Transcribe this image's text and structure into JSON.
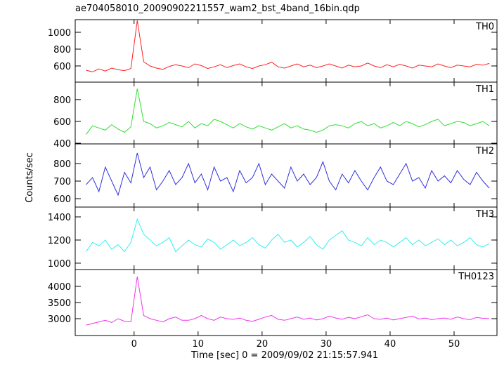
{
  "title": "ae704058010_20090902211557_wam2_bst_4band_16bin.qdp",
  "xlabel": "Time [sec] 0 = 2009/09/02 21:15:57.941",
  "ylabel": "Counts/sec",
  "xlim": [
    -9.2,
    56.7
  ],
  "xticks": [
    0,
    10,
    20,
    30,
    40,
    50
  ],
  "chart_data": [
    {
      "type": "line",
      "label": "TH0",
      "color": "#ff2020",
      "ylim": [
        408,
        1150
      ],
      "yticks": [
        600,
        800,
        1000
      ],
      "x": [
        -7.5,
        -6.5,
        -5.5,
        -4.5,
        -3.5,
        -2.5,
        -1.5,
        -0.5,
        0.5,
        1.5,
        2.5,
        3.5,
        4.5,
        5.5,
        6.5,
        7.5,
        8.5,
        9.5,
        10.5,
        11.5,
        12.5,
        13.5,
        14.5,
        15.5,
        16.5,
        17.5,
        18.5,
        19.5,
        20.5,
        21.5,
        22.5,
        23.5,
        24.5,
        25.5,
        26.5,
        27.5,
        28.5,
        29.5,
        30.5,
        31.5,
        32.5,
        33.5,
        34.5,
        35.5,
        36.5,
        37.5,
        38.5,
        39.5,
        40.5,
        41.5,
        42.5,
        43.5,
        44.5,
        45.5,
        46.5,
        47.5,
        48.5,
        49.5,
        50.5,
        51.5,
        52.5,
        53.5,
        54.5,
        55.5
      ],
      "values": [
        550,
        530,
        565,
        540,
        575,
        555,
        545,
        570,
        1140,
        650,
        600,
        575,
        560,
        595,
        615,
        600,
        580,
        625,
        605,
        570,
        590,
        615,
        580,
        605,
        625,
        590,
        570,
        600,
        615,
        645,
        590,
        575,
        600,
        625,
        590,
        610,
        580,
        600,
        625,
        600,
        575,
        610,
        590,
        600,
        635,
        600,
        580,
        615,
        590,
        620,
        600,
        575,
        610,
        600,
        590,
        625,
        600,
        580,
        610,
        600,
        590,
        620,
        610,
        630
      ]
    },
    {
      "type": "line",
      "label": "TH1",
      "color": "#30e030",
      "ylim": [
        394,
        960
      ],
      "yticks": [
        400,
        600,
        800
      ],
      "x": [
        -7.5,
        -6.5,
        -5.5,
        -4.5,
        -3.5,
        -2.5,
        -1.5,
        -0.5,
        0.5,
        1.5,
        2.5,
        3.5,
        4.5,
        5.5,
        6.5,
        7.5,
        8.5,
        9.5,
        10.5,
        11.5,
        12.5,
        13.5,
        14.5,
        15.5,
        16.5,
        17.5,
        18.5,
        19.5,
        20.5,
        21.5,
        22.5,
        23.5,
        24.5,
        25.5,
        26.5,
        27.5,
        28.5,
        29.5,
        30.5,
        31.5,
        32.5,
        33.5,
        34.5,
        35.5,
        36.5,
        37.5,
        38.5,
        39.5,
        40.5,
        41.5,
        42.5,
        43.5,
        44.5,
        45.5,
        46.5,
        47.5,
        48.5,
        49.5,
        50.5,
        51.5,
        52.5,
        53.5,
        54.5,
        55.5
      ],
      "values": [
        480,
        560,
        540,
        520,
        570,
        530,
        500,
        550,
        900,
        600,
        580,
        540,
        560,
        590,
        570,
        550,
        600,
        540,
        580,
        560,
        620,
        600,
        570,
        540,
        580,
        550,
        530,
        560,
        540,
        520,
        550,
        580,
        540,
        560,
        530,
        520,
        500,
        520,
        560,
        570,
        560,
        540,
        580,
        600,
        560,
        580,
        540,
        560,
        590,
        560,
        600,
        580,
        550,
        570,
        600,
        620,
        560,
        580,
        600,
        590,
        560,
        580,
        600,
        560
      ]
    },
    {
      "type": "line",
      "label": "TH2",
      "color": "#3030e0",
      "ylim": [
        552,
        912
      ],
      "yticks": [
        600,
        700,
        800
      ],
      "x": [
        -7.5,
        -6.5,
        -5.5,
        -4.5,
        -3.5,
        -2.5,
        -1.5,
        -0.5,
        0.5,
        1.5,
        2.5,
        3.5,
        4.5,
        5.5,
        6.5,
        7.5,
        8.5,
        9.5,
        10.5,
        11.5,
        12.5,
        13.5,
        14.5,
        15.5,
        16.5,
        17.5,
        18.5,
        19.5,
        20.5,
        21.5,
        22.5,
        23.5,
        24.5,
        25.5,
        26.5,
        27.5,
        28.5,
        29.5,
        30.5,
        31.5,
        32.5,
        33.5,
        34.5,
        35.5,
        36.5,
        37.5,
        38.5,
        39.5,
        40.5,
        41.5,
        42.5,
        43.5,
        44.5,
        45.5,
        46.5,
        47.5,
        48.5,
        49.5,
        50.5,
        51.5,
        52.5,
        53.5,
        54.5,
        55.5
      ],
      "values": [
        680,
        720,
        640,
        780,
        700,
        620,
        750,
        690,
        860,
        720,
        780,
        650,
        700,
        760,
        680,
        720,
        800,
        690,
        740,
        650,
        780,
        700,
        720,
        640,
        760,
        690,
        720,
        800,
        680,
        740,
        700,
        660,
        780,
        700,
        740,
        680,
        720,
        810,
        700,
        650,
        740,
        690,
        760,
        700,
        650,
        720,
        780,
        700,
        680,
        740,
        800,
        700,
        720,
        660,
        760,
        700,
        730,
        690,
        760,
        710,
        680,
        750,
        700,
        660
      ]
    },
    {
      "type": "line",
      "label": "TH3",
      "color": "#30f0f0",
      "ylim": [
        945,
        1485
      ],
      "yticks": [
        1000,
        1200,
        1400
      ],
      "x": [
        -7.5,
        -6.5,
        -5.5,
        -4.5,
        -3.5,
        -2.5,
        -1.5,
        -0.5,
        0.5,
        1.5,
        2.5,
        3.5,
        4.5,
        5.5,
        6.5,
        7.5,
        8.5,
        9.5,
        10.5,
        11.5,
        12.5,
        13.5,
        14.5,
        15.5,
        16.5,
        17.5,
        18.5,
        19.5,
        20.5,
        21.5,
        22.5,
        23.5,
        24.5,
        25.5,
        26.5,
        27.5,
        28.5,
        29.5,
        30.5,
        31.5,
        32.5,
        33.5,
        34.5,
        35.5,
        36.5,
        37.5,
        38.5,
        39.5,
        40.5,
        41.5,
        42.5,
        43.5,
        44.5,
        45.5,
        46.5,
        47.5,
        48.5,
        49.5,
        50.5,
        51.5,
        52.5,
        53.5,
        54.5,
        55.5
      ],
      "values": [
        1100,
        1180,
        1150,
        1200,
        1120,
        1160,
        1100,
        1180,
        1380,
        1250,
        1200,
        1150,
        1180,
        1220,
        1100,
        1150,
        1200,
        1160,
        1140,
        1210,
        1180,
        1120,
        1160,
        1200,
        1150,
        1180,
        1220,
        1160,
        1130,
        1200,
        1250,
        1180,
        1200,
        1140,
        1180,
        1230,
        1160,
        1120,
        1200,
        1240,
        1280,
        1200,
        1180,
        1150,
        1220,
        1160,
        1200,
        1180,
        1140,
        1180,
        1220,
        1160,
        1200,
        1150,
        1180,
        1210,
        1160,
        1200,
        1150,
        1180,
        1220,
        1160,
        1140,
        1170
      ]
    },
    {
      "type": "line",
      "label": "TH0123",
      "color": "#f030f0",
      "ylim": [
        2478,
        4522
      ],
      "yticks": [
        3000,
        3500,
        4000
      ],
      "x": [
        -7.5,
        -6.5,
        -5.5,
        -4.5,
        -3.5,
        -2.5,
        -1.5,
        -0.5,
        0.5,
        1.5,
        2.5,
        3.5,
        4.5,
        5.5,
        6.5,
        7.5,
        8.5,
        9.5,
        10.5,
        11.5,
        12.5,
        13.5,
        14.5,
        15.5,
        16.5,
        17.5,
        18.5,
        19.5,
        20.5,
        21.5,
        22.5,
        23.5,
        24.5,
        25.5,
        26.5,
        27.5,
        28.5,
        29.5,
        30.5,
        31.5,
        32.5,
        33.5,
        34.5,
        35.5,
        36.5,
        37.5,
        38.5,
        39.5,
        40.5,
        41.5,
        42.5,
        43.5,
        44.5,
        45.5,
        46.5,
        47.5,
        48.5,
        49.5,
        50.5,
        51.5,
        52.5,
        53.5,
        54.5,
        55.5
      ],
      "values": [
        2800,
        2850,
        2900,
        2950,
        2880,
        3000,
        2920,
        2900,
        4300,
        3100,
        3000,
        2950,
        2900,
        3000,
        3050,
        2950,
        2950,
        3000,
        3100,
        3000,
        2950,
        3050,
        3000,
        2980,
        3020,
        2950,
        2920,
        2980,
        3050,
        3100,
        2980,
        2950,
        3000,
        3050,
        2980,
        3020,
        2960,
        3000,
        3080,
        3020,
        2980,
        3040,
        3000,
        3060,
        3120,
        3000,
        2980,
        3020,
        2960,
        3000,
        3040,
        3080,
        2990,
        3020,
        2970,
        3000,
        3020,
        2980,
        3050,
        3000,
        2970,
        3040,
        3010,
        3000
      ]
    }
  ]
}
